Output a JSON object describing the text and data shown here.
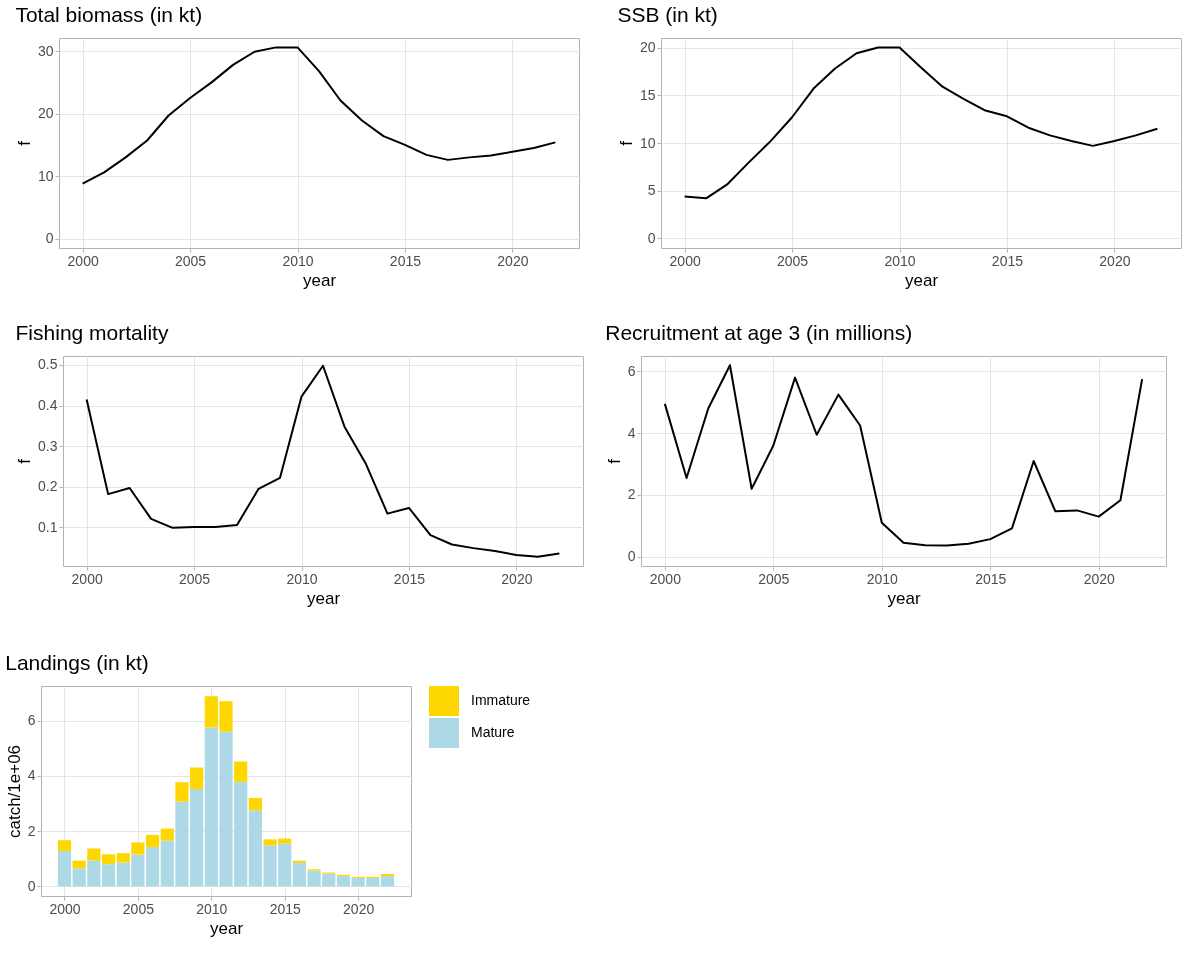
{
  "chart_data": [
    {
      "type": "line",
      "title": "Total biomass (in kt)",
      "xlabel": "year",
      "ylabel": "f",
      "x": [
        2000,
        2001,
        2002,
        2003,
        2004,
        2005,
        2006,
        2007,
        2008,
        2009,
        2010,
        2011,
        2012,
        2013,
        2014,
        2015,
        2016,
        2017,
        2018,
        2019,
        2020,
        2021,
        2022
      ],
      "xlim": [
        1998.9,
        2023.1
      ],
      "xticks": [
        2000,
        2005,
        2010,
        2015,
        2020
      ],
      "ylim": [
        -1.5,
        32.1
      ],
      "yticks": [
        0,
        10,
        20,
        30
      ],
      "grid": true,
      "series": [
        {
          "color": "#000000",
          "values": [
            8.8,
            10.6,
            13.0,
            15.7,
            19.7,
            22.5,
            25.0,
            27.8,
            29.9,
            30.6,
            30.6,
            26.8,
            22.1,
            18.9,
            16.4,
            15.0,
            13.4,
            12.6,
            13.0,
            13.3,
            13.9,
            14.5,
            15.4
          ]
        }
      ]
    },
    {
      "type": "line",
      "title": "SSB (in kt)",
      "xlabel": "year",
      "ylabel": "f",
      "x": [
        2000,
        2001,
        2002,
        2003,
        2004,
        2005,
        2006,
        2007,
        2008,
        2009,
        2010,
        2011,
        2012,
        2013,
        2014,
        2015,
        2016,
        2017,
        2018,
        2019,
        2020,
        2021,
        2022
      ],
      "xlim": [
        1998.9,
        2023.1
      ],
      "xticks": [
        2000,
        2005,
        2010,
        2015,
        2020
      ],
      "ylim": [
        -1,
        21
      ],
      "yticks": [
        0,
        5,
        10,
        15,
        20
      ],
      "grid": true,
      "series": [
        {
          "color": "#000000",
          "values": [
            4.4,
            4.2,
            5.7,
            8.0,
            10.2,
            12.7,
            15.7,
            17.8,
            19.4,
            20.0,
            20.0,
            17.9,
            15.9,
            14.6,
            13.4,
            12.8,
            11.6,
            10.8,
            10.2,
            9.7,
            10.2,
            10.8,
            11.5
          ]
        }
      ]
    },
    {
      "type": "line",
      "title": "Fishing mortality",
      "xlabel": "year",
      "ylabel": "f",
      "x": [
        2000,
        2001,
        2002,
        2003,
        2004,
        2005,
        2006,
        2007,
        2008,
        2009,
        2010,
        2011,
        2012,
        2013,
        2014,
        2015,
        2016,
        2017,
        2018,
        2019,
        2020,
        2021,
        2022
      ],
      "xlim": [
        1998.9,
        2023.1
      ],
      "xticks": [
        2000,
        2005,
        2010,
        2015,
        2020
      ],
      "ylim": [
        0.005,
        0.522
      ],
      "yticks": [
        0.1,
        0.2,
        0.3,
        0.4,
        0.5
      ],
      "grid": true,
      "series": [
        {
          "color": "#000000",
          "values": [
            0.415,
            0.182,
            0.197,
            0.121,
            0.099,
            0.101,
            0.101,
            0.106,
            0.195,
            0.222,
            0.422,
            0.498,
            0.348,
            0.256,
            0.134,
            0.148,
            0.081,
            0.058,
            0.049,
            0.042,
            0.032,
            0.028,
            0.036
          ]
        }
      ]
    },
    {
      "type": "line",
      "title": "Recruitment at age 3 (in millions)",
      "xlabel": "year",
      "ylabel": "f",
      "x": [
        2000,
        2001,
        2002,
        2003,
        2004,
        2005,
        2006,
        2007,
        2008,
        2009,
        2010,
        2011,
        2012,
        2013,
        2014,
        2015,
        2016,
        2017,
        2018,
        2019,
        2020,
        2021,
        2022
      ],
      "xlim": [
        1998.9,
        2023.1
      ],
      "xticks": [
        2000,
        2005,
        2010,
        2015,
        2020
      ],
      "ylim": [
        -0.3,
        6.5
      ],
      "yticks": [
        0,
        2,
        4,
        6
      ],
      "grid": true,
      "series": [
        {
          "color": "#000000",
          "values": [
            4.95,
            2.55,
            4.8,
            6.2,
            2.2,
            3.6,
            5.8,
            3.95,
            5.25,
            4.25,
            1.1,
            0.45,
            0.37,
            0.36,
            0.42,
            0.57,
            0.92,
            3.1,
            1.47,
            1.5,
            1.3,
            1.83,
            5.75
          ]
        }
      ]
    },
    {
      "type": "bar",
      "title": "Landings (in kt)",
      "xlabel": "year",
      "ylabel": "catch/1e+06",
      "x": [
        2000,
        2001,
        2002,
        2003,
        2004,
        2005,
        2006,
        2007,
        2008,
        2009,
        2010,
        2011,
        2012,
        2013,
        2014,
        2015,
        2016,
        2017,
        2018,
        2019,
        2020,
        2021,
        2022
      ],
      "xlim": [
        1998.4,
        2023.6
      ],
      "xticks": [
        2000,
        2005,
        2010,
        2015,
        2020
      ],
      "ylim": [
        -0.35,
        7.25
      ],
      "yticks": [
        0,
        2,
        4,
        6
      ],
      "grid": true,
      "stacked": true,
      "legend": "right",
      "series": [
        {
          "name": "Mature",
          "color": "#add8e6",
          "values": [
            1.28,
            0.65,
            0.93,
            0.8,
            0.86,
            1.15,
            1.42,
            1.65,
            3.07,
            3.52,
            5.75,
            5.6,
            3.78,
            2.75,
            1.48,
            1.55,
            0.85,
            0.57,
            0.46,
            0.37,
            0.3,
            0.3,
            0.37
          ]
        },
        {
          "name": "Immature",
          "color": "#ffd700",
          "values": [
            0.39,
            0.28,
            0.44,
            0.36,
            0.34,
            0.44,
            0.44,
            0.44,
            0.7,
            0.78,
            1.13,
            1.1,
            0.74,
            0.45,
            0.22,
            0.18,
            0.08,
            0.05,
            0.04,
            0.05,
            0.04,
            0.04,
            0.08
          ]
        }
      ]
    }
  ]
}
